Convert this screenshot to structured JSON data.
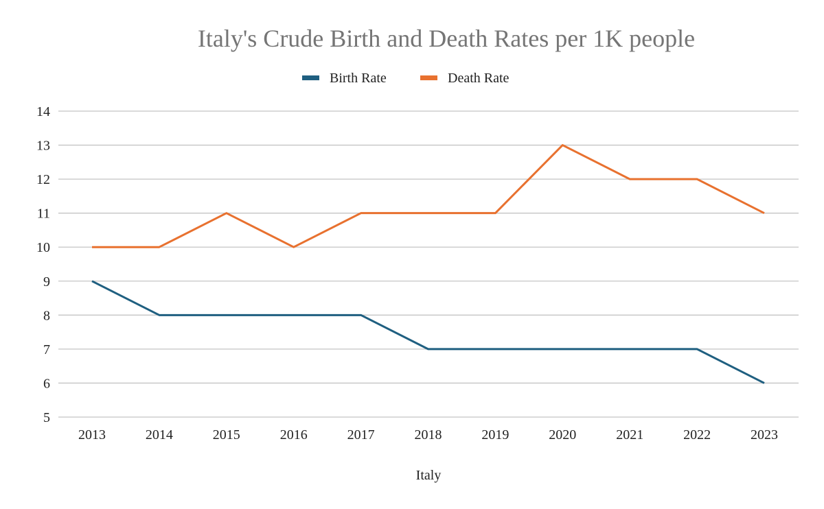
{
  "chart_data": {
    "type": "line",
    "title": "Italy's Crude Birth and Death Rates per 1K people",
    "xlabel": "Italy",
    "ylabel": "",
    "categories": [
      "2013",
      "2014",
      "2015",
      "2016",
      "2017",
      "2018",
      "2019",
      "2020",
      "2021",
      "2022",
      "2023"
    ],
    "ylim": [
      5,
      14
    ],
    "yticks": [
      5,
      6,
      7,
      8,
      9,
      10,
      11,
      12,
      13,
      14
    ],
    "grid": true,
    "legend_position": "top",
    "series": [
      {
        "name": "Birth Rate",
        "color": "#1f5f80",
        "values": [
          9,
          8,
          8,
          8,
          8,
          7,
          7,
          7,
          7,
          7,
          6
        ]
      },
      {
        "name": "Death Rate",
        "color": "#e8712f",
        "values": [
          10,
          10,
          11,
          10,
          11,
          11,
          11,
          13,
          12,
          12,
          11
        ]
      }
    ]
  }
}
